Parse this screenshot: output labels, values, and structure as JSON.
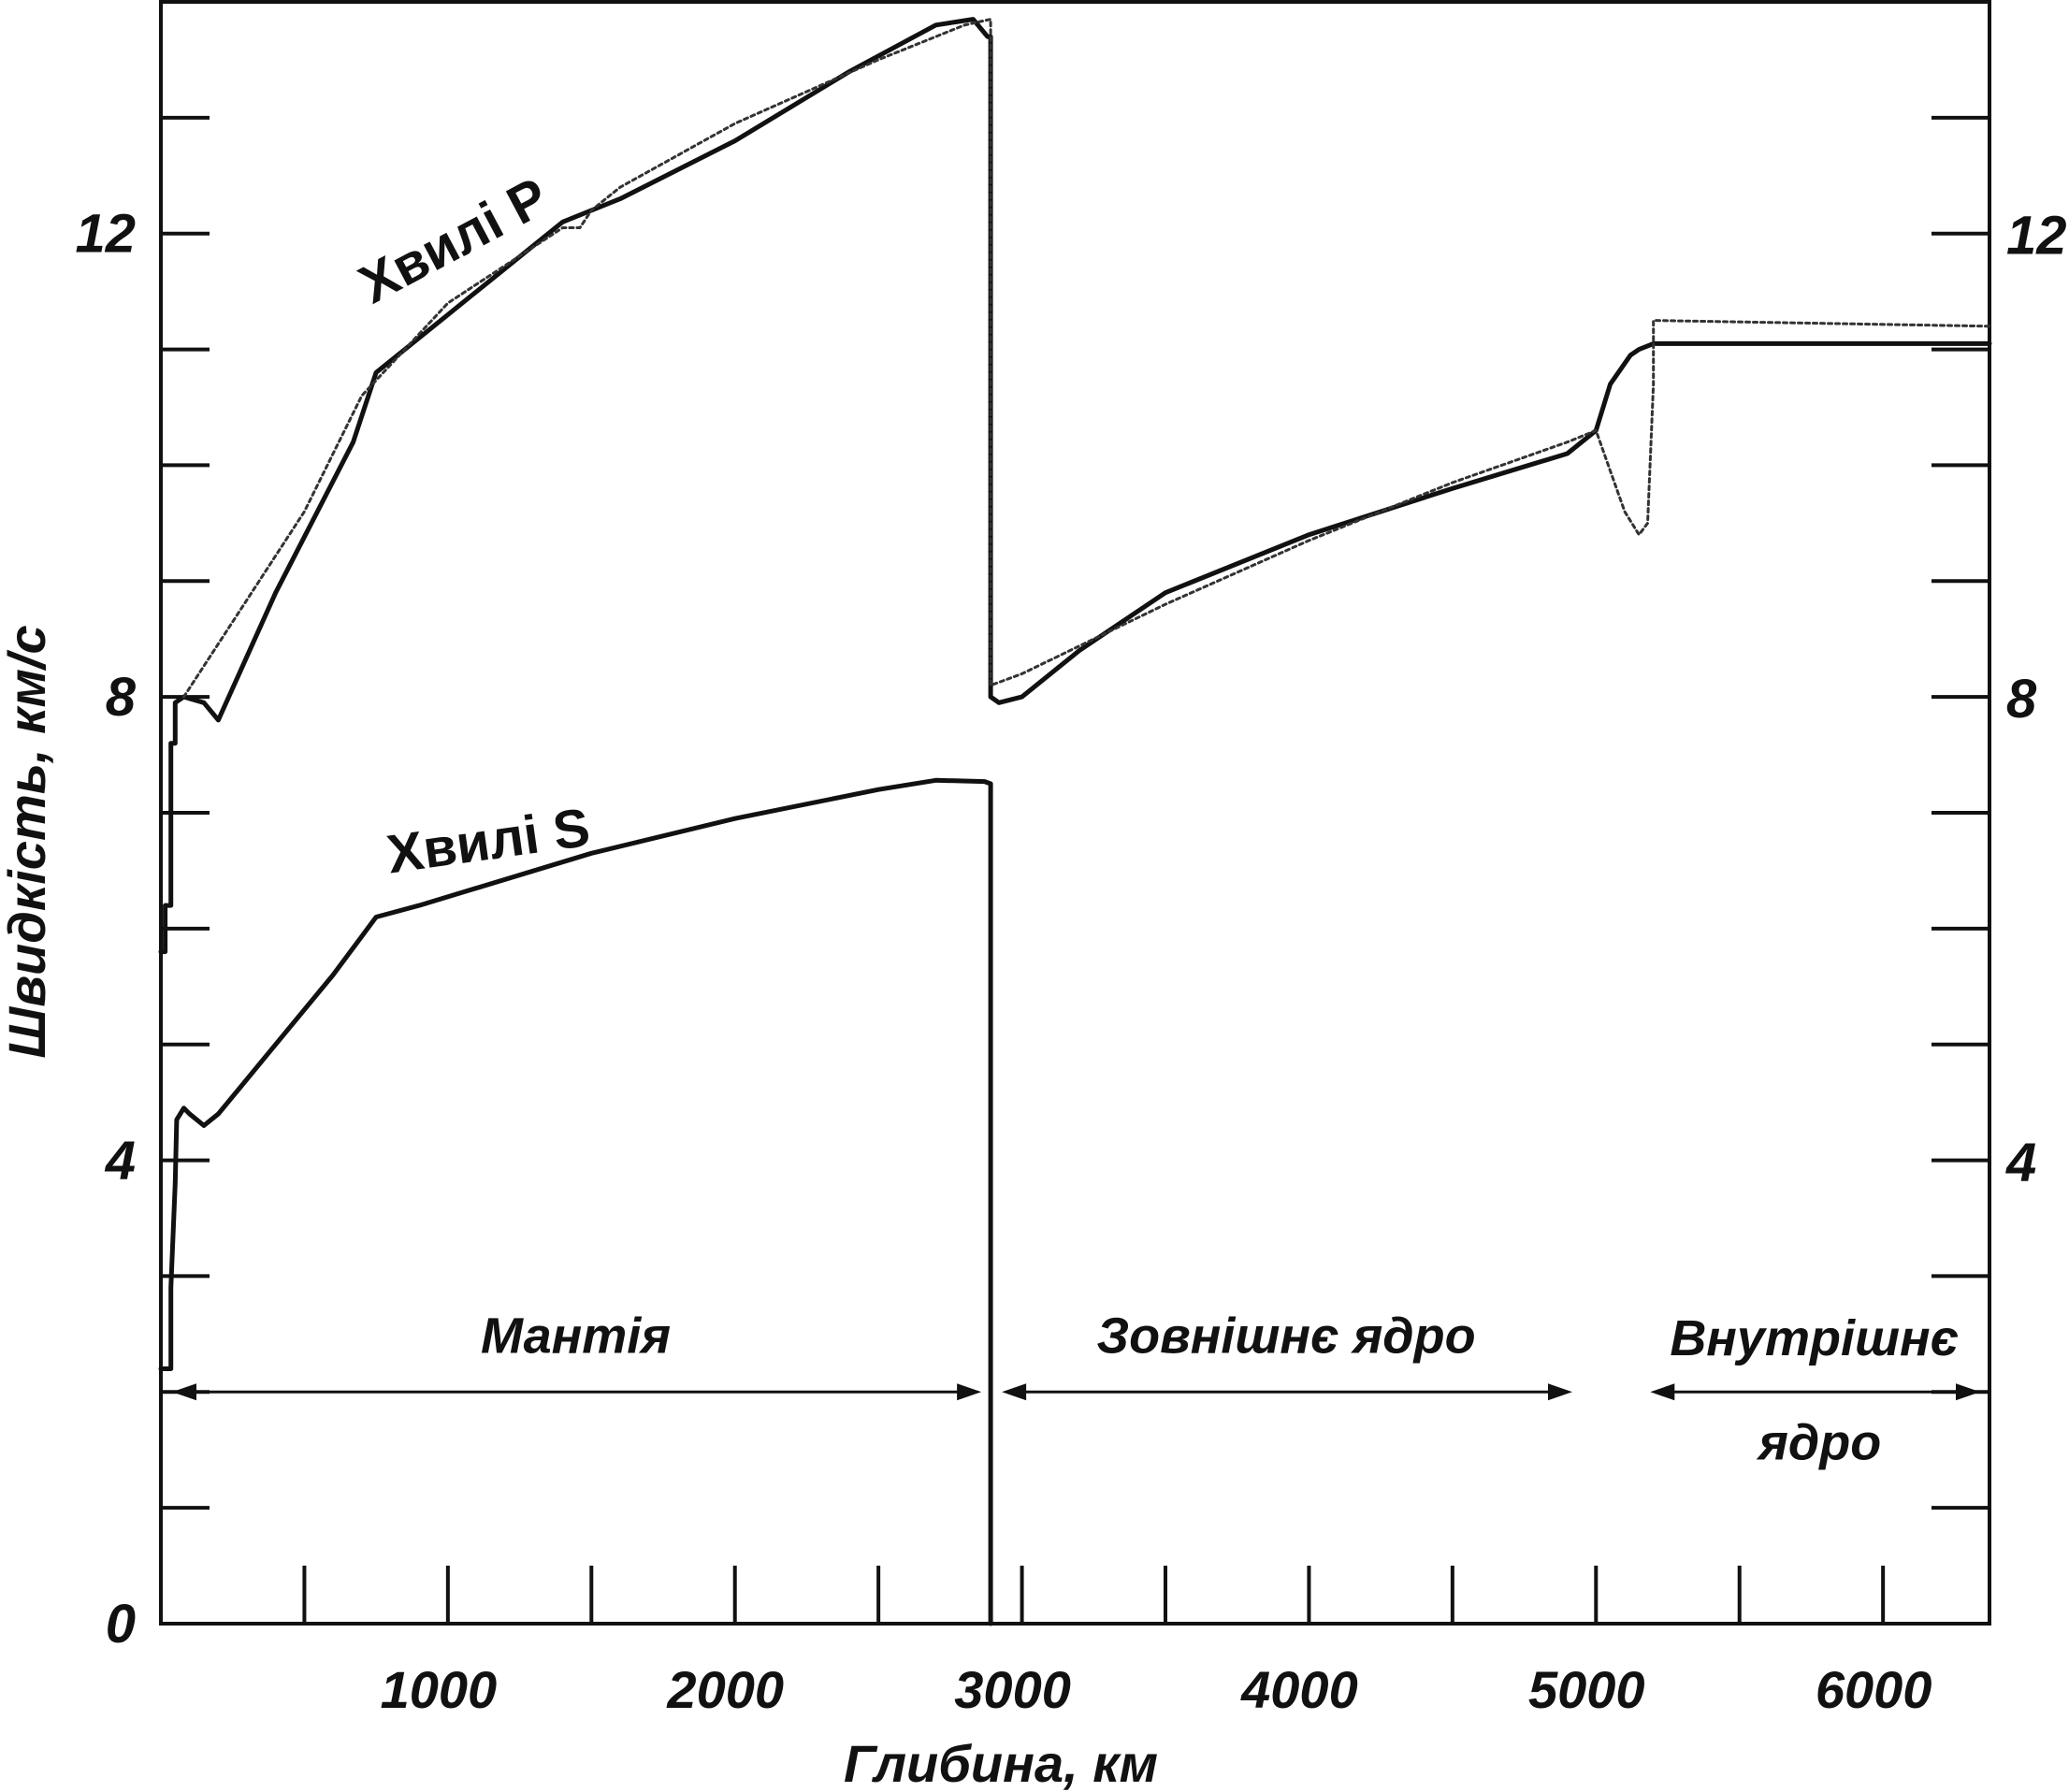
{
  "chart_data": {
    "type": "line",
    "xlabel": "Глибина, км",
    "ylabel": "Швидкість, км/с",
    "xlim": [
      0,
      6371
    ],
    "ylim": [
      0,
      14
    ],
    "x_ticks": [
      {
        "value": 1000,
        "label": "1000"
      },
      {
        "value": 2000,
        "label": "2000"
      },
      {
        "value": 3000,
        "label": "3000"
      },
      {
        "value": 4000,
        "label": "4000"
      },
      {
        "value": 5000,
        "label": "5000"
      },
      {
        "value": 6000,
        "label": "6000"
      }
    ],
    "x_minor_ticks": [
      500,
      1000,
      1500,
      2000,
      2500,
      3000,
      3500,
      4000,
      4500,
      5000,
      5500,
      6000
    ],
    "y_ticks": [
      {
        "value": 0,
        "label": "0"
      },
      {
        "value": 4,
        "label": "4"
      },
      {
        "value": 8,
        "label": "8"
      },
      {
        "value": 12,
        "label": "12"
      }
    ],
    "y_ticks_right": [
      {
        "value": 4,
        "label": "4"
      },
      {
        "value": 8,
        "label": "8"
      },
      {
        "value": 12,
        "label": "12"
      }
    ],
    "y_minor_ticks": [
      1,
      2,
      3,
      4,
      5,
      6,
      7,
      8,
      9,
      10,
      11,
      12,
      13
    ],
    "series": [
      {
        "name": "Хвилі P",
        "style": "solid",
        "x": [
          0,
          15,
          15,
          35,
          35,
          50,
          50,
          80,
          150,
          200,
          400,
          670,
          750,
          900,
          1000,
          1200,
          1400,
          1600,
          2000,
          2400,
          2700,
          2830,
          2880,
          2891,
          2891,
          2920,
          3000,
          3200,
          3500,
          4000,
          4500,
          4900,
          5000,
          5050,
          5120,
          5150,
          5200,
          6371
        ],
        "y": [
          5.8,
          5.8,
          6.2,
          6.2,
          7.6,
          7.6,
          7.95,
          8.0,
          7.95,
          7.8,
          8.9,
          10.2,
          10.8,
          11.1,
          11.3,
          11.7,
          12.1,
          12.3,
          12.8,
          13.4,
          13.8,
          13.85,
          13.7,
          13.7,
          8.0,
          7.95,
          8.0,
          8.4,
          8.9,
          9.4,
          9.8,
          10.1,
          10.3,
          10.7,
          10.95,
          11.0,
          11.05,
          11.05
        ]
      },
      {
        "name": "",
        "style": "dotted",
        "x": [
          80,
          500,
          700,
          1000,
          1400,
          1460,
          1500,
          1600,
          2000,
          2500,
          2800,
          2891,
          2891,
          3000,
          3500,
          4000,
          4500,
          4900,
          5000,
          5100,
          5150,
          5180,
          5200,
          5200,
          6371
        ],
        "y": [
          8.0,
          9.6,
          10.6,
          11.4,
          12.05,
          12.05,
          12.2,
          12.4,
          12.95,
          13.5,
          13.8,
          13.85,
          8.1,
          8.2,
          8.8,
          9.35,
          9.85,
          10.2,
          10.3,
          9.6,
          9.4,
          9.5,
          10.7,
          11.25,
          11.2
        ]
      },
      {
        "name": "Хвилі S",
        "style": "solid",
        "x": [
          0,
          35,
          35,
          50,
          55,
          80,
          100,
          150,
          200,
          400,
          600,
          750,
          900,
          1500,
          2000,
          2500,
          2700,
          2870,
          2891,
          2891
        ],
        "y": [
          2.2,
          2.2,
          2.9,
          3.8,
          4.35,
          4.45,
          4.4,
          4.3,
          4.4,
          5.0,
          5.6,
          6.1,
          6.2,
          6.65,
          6.95,
          7.2,
          7.28,
          7.27,
          7.25,
          0
        ]
      }
    ],
    "annotations": [
      {
        "text": "Хвилі P",
        "x": 1050,
        "y": 11.8,
        "rotate": -28
      },
      {
        "text": "Хвилі S",
        "x": 1150,
        "y": 6.6,
        "rotate": -8
      }
    ],
    "regions": [
      {
        "label": "Мантія",
        "label_lines": [
          "Мантія"
        ],
        "start": 0,
        "end": 2891,
        "arrow_y": 2.0,
        "label_y": 2.4
      },
      {
        "label": "Зовнішнє ядро",
        "label_lines": [
          "Зовнішнє ядро"
        ],
        "start": 2891,
        "end": 4950,
        "arrow_y": 2.0,
        "label_y": 2.4
      },
      {
        "label": "Внутрішнє ядро",
        "label_lines": [
          "Внутрішнє",
          "ядро"
        ],
        "start": 5150,
        "end": 6371,
        "arrow_y": 2.0,
        "label_y": 2.35
      }
    ]
  }
}
